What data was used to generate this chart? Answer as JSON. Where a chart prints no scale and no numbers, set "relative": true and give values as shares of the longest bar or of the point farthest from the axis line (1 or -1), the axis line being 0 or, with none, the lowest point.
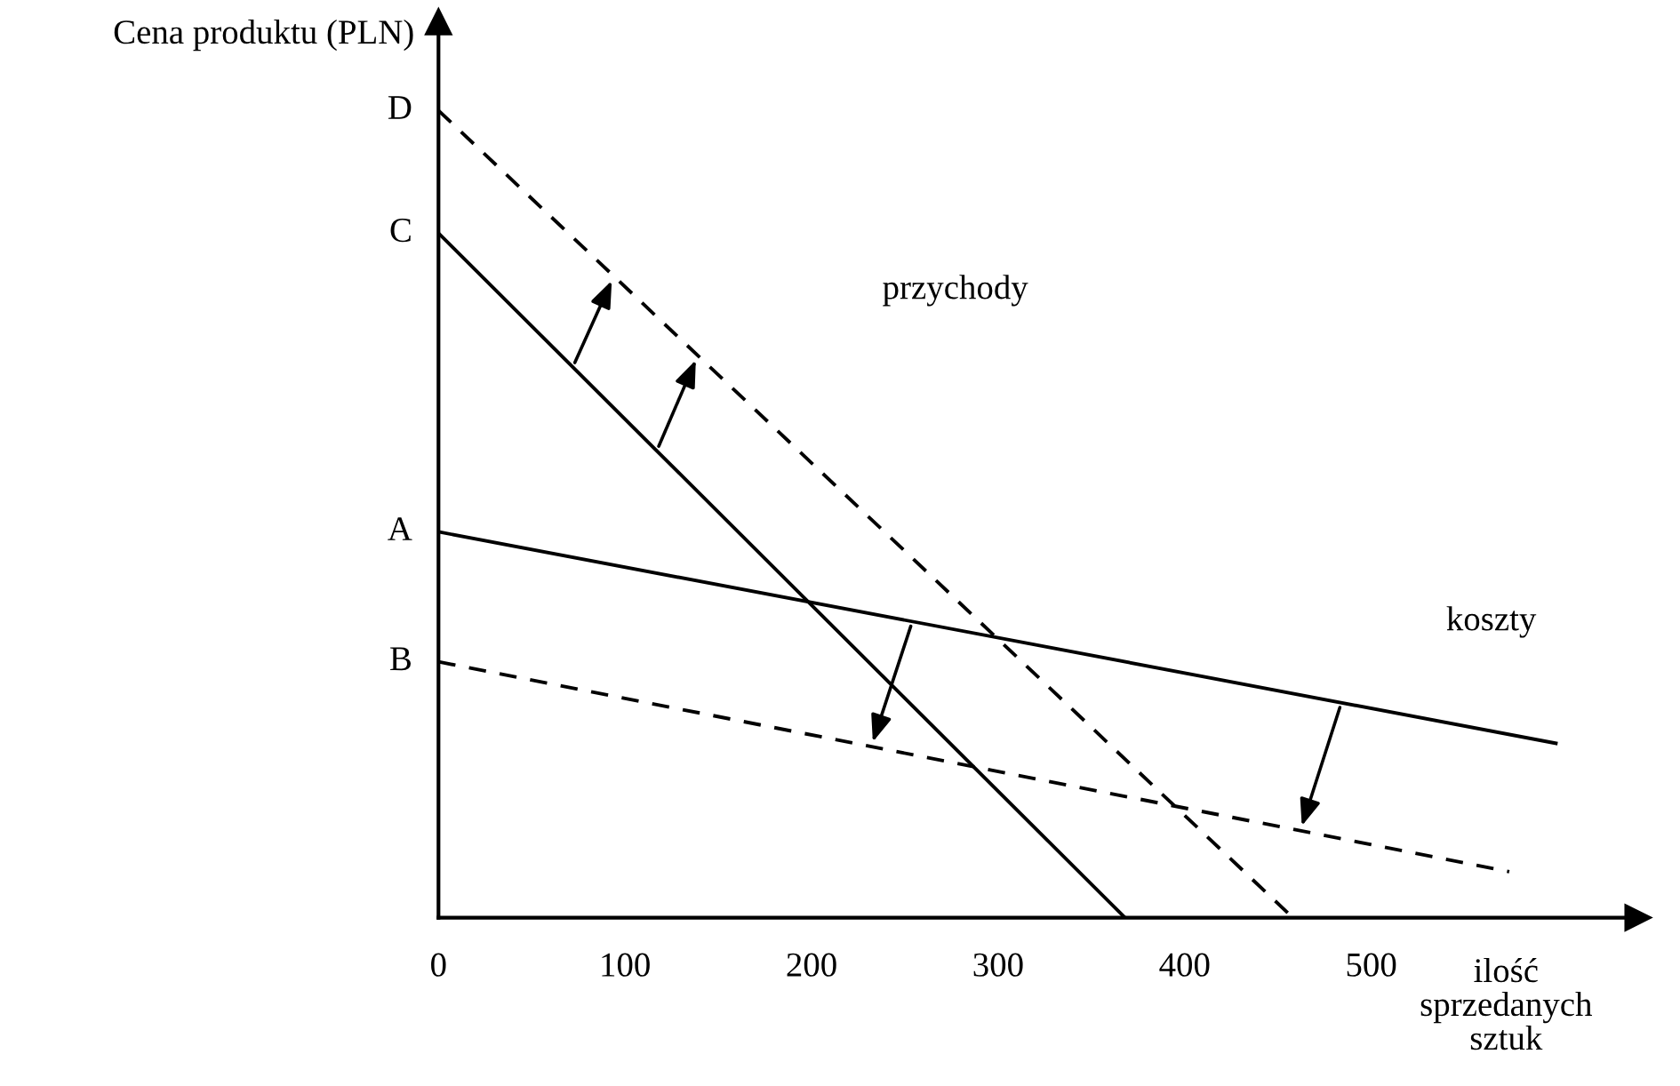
{
  "chart_data": {
    "type": "line",
    "relative": true,
    "ylabel": "Cena produktu (PLN)",
    "xlabel": "ilość\nsprzedanych\nsztuk",
    "xlim": [
      0,
      643
    ],
    "xticks": [
      0,
      100,
      200,
      300,
      400,
      500
    ],
    "grid": false,
    "marker": "none",
    "series": [
      {
        "name": "D",
        "color": "#000000",
        "line_style": "dashed",
        "x": [
          0,
          458
        ],
        "values": [
          1,
          0
        ]
      },
      {
        "name": "C",
        "color": "#000000",
        "line_style": "solid",
        "x": [
          0,
          368
        ],
        "values": [
          0.848,
          0
        ]
      },
      {
        "name": "A",
        "color": "#000000",
        "line_style": "solid",
        "x": [
          0,
          599
        ],
        "values": [
          0.478,
          0.216
        ]
      },
      {
        "name": "B",
        "color": "#000000",
        "line_style": "dashed",
        "x": [
          0,
          574
        ],
        "values": [
          0.317,
          0.057
        ]
      }
    ],
    "annotations": [
      "przychody",
      "koszty"
    ]
  }
}
